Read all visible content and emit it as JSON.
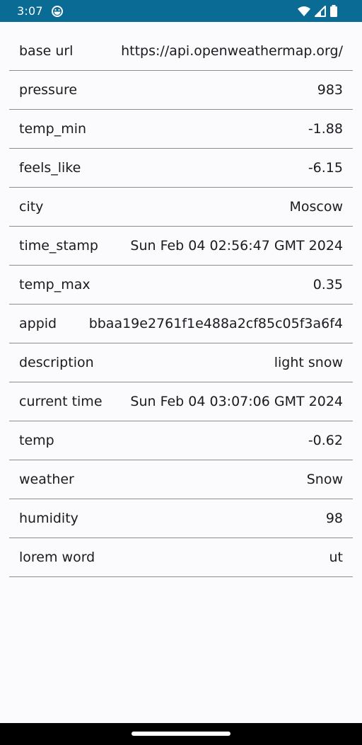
{
  "status_bar": {
    "time": "3:07",
    "icons": [
      "app-notification-icon",
      "wifi-icon",
      "cellular-signal-icon",
      "battery-icon"
    ],
    "color": "#0a6c95"
  },
  "rows": [
    {
      "key": "base url",
      "value": "https://api.openweathermap.org/"
    },
    {
      "key": "pressure",
      "value": "983"
    },
    {
      "key": "temp_min",
      "value": "-1.88"
    },
    {
      "key": "feels_like",
      "value": "-6.15"
    },
    {
      "key": "city",
      "value": "Moscow"
    },
    {
      "key": "time_stamp",
      "value": "Sun Feb 04 02:56:47 GMT 2024"
    },
    {
      "key": "temp_max",
      "value": "0.35"
    },
    {
      "key": "appid",
      "value": "bbaa19e2761f1e488a2cf85c05f3a6f4"
    },
    {
      "key": "description",
      "value": "light snow"
    },
    {
      "key": "current time",
      "value": "Sun Feb 04 03:07:06 GMT 2024"
    },
    {
      "key": "temp",
      "value": "-0.62"
    },
    {
      "key": "weather",
      "value": "Snow"
    },
    {
      "key": "humidity",
      "value": "98"
    },
    {
      "key": "lorem word",
      "value": "ut"
    }
  ],
  "nav_bar": {
    "handle": "home-handle"
  }
}
